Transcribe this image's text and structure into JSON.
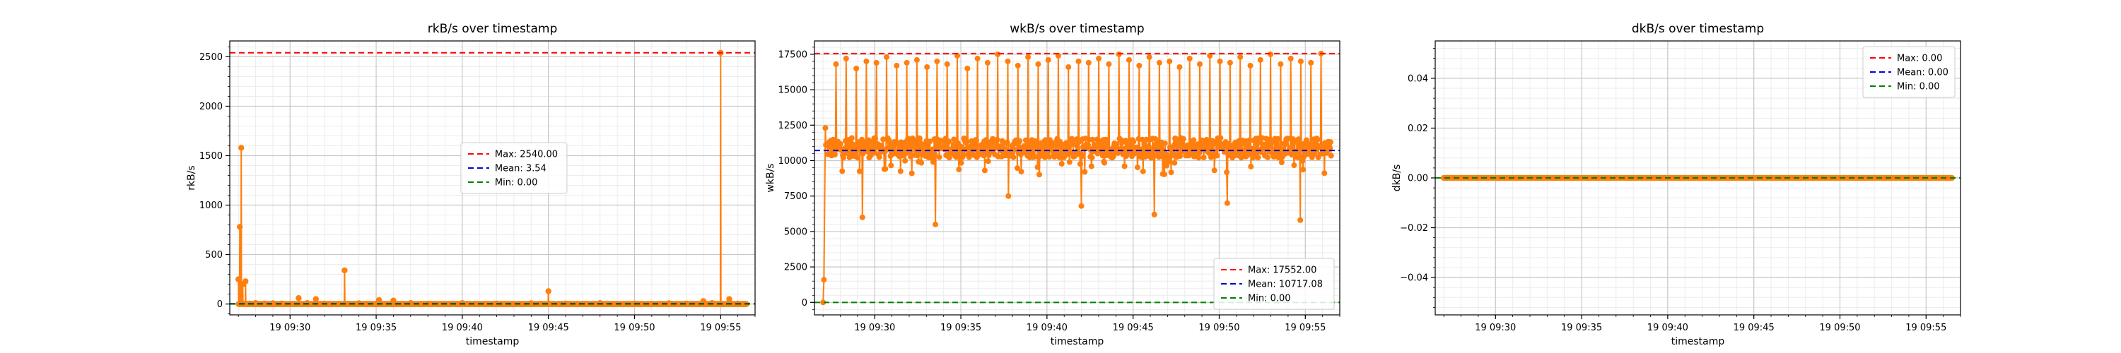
{
  "figure": {
    "charts": [
      {
        "title": "rkB/s over timestamp",
        "xlabel": "timestamp",
        "ylabel": "rkB/s"
      },
      {
        "title": "wkB/s over timestamp",
        "xlabel": "timestamp",
        "ylabel": "wkB/s"
      },
      {
        "title": "dkB/s over timestamp",
        "xlabel": "timestamp",
        "ylabel": "dkB/s"
      }
    ]
  },
  "chart_data": [
    {
      "type": "line",
      "title": "rkB/s over timestamp",
      "xlabel": "timestamp",
      "ylabel": "rkB/s",
      "x_range": [
        "19 09:26:30",
        "19 09:57:00"
      ],
      "ylim": [
        -110,
        2660
      ],
      "x_ticks": [
        "19 09:30",
        "19 09:35",
        "19 09:40",
        "19 09:45",
        "19 09:50",
        "19 09:55"
      ],
      "y_ticks": [
        0,
        500,
        1000,
        1500,
        2000,
        2500
      ],
      "grid": true,
      "minor_grid": true,
      "legend_position": "center-right",
      "series": [
        {
          "color": "#ff7f0e",
          "marker": "circle",
          "baseline": 0,
          "spikes": [
            [
              "19 09:27:00",
              250
            ],
            [
              "19 09:27:05",
              780
            ],
            [
              "19 09:27:10",
              1580
            ],
            [
              "19 09:27:15",
              200
            ],
            [
              "19 09:27:25",
              230
            ],
            [
              "19 09:27:40",
              5
            ],
            [
              "19 09:28:00",
              10
            ],
            [
              "19 09:28:30",
              5
            ],
            [
              "19 09:29:00",
              8
            ],
            [
              "19 09:29:30",
              5
            ],
            [
              "19 09:30:30",
              60
            ],
            [
              "19 09:31:00",
              10
            ],
            [
              "19 09:31:30",
              50
            ],
            [
              "19 09:32:00",
              5
            ],
            [
              "19 09:33:10",
              340
            ],
            [
              "19 09:34:00",
              8
            ],
            [
              "19 09:35:10",
              40
            ],
            [
              "19 09:36:00",
              35
            ],
            [
              "19 09:37:00",
              10
            ],
            [
              "19 09:38:00",
              5
            ],
            [
              "19 09:40:00",
              10
            ],
            [
              "19 09:42:00",
              5
            ],
            [
              "19 09:44:00",
              8
            ],
            [
              "19 09:45:00",
              130
            ],
            [
              "19 09:46:00",
              5
            ],
            [
              "19 09:48:00",
              10
            ],
            [
              "19 09:50:00",
              5
            ],
            [
              "19 09:52:00",
              8
            ],
            [
              "19 09:53:00",
              5
            ],
            [
              "19 09:54:00",
              30
            ],
            [
              "19 09:54:30",
              10
            ],
            [
              "19 09:55:00",
              2540
            ],
            [
              "19 09:55:30",
              50
            ],
            [
              "19 09:56:00",
              5
            ]
          ]
        }
      ],
      "reference_lines": [
        {
          "label": "Max: 2540.00",
          "value": 2540.0,
          "color": "#ff0000",
          "style": "dashed"
        },
        {
          "label": "Mean: 3.54",
          "value": 3.54,
          "color": "#0000cc",
          "style": "dashed"
        },
        {
          "label": "Min: 0.00",
          "value": 0.0,
          "color": "#008000",
          "style": "dashed"
        }
      ]
    },
    {
      "type": "line",
      "title": "wkB/s over timestamp",
      "xlabel": "timestamp",
      "ylabel": "wkB/s",
      "x_range": [
        "19 09:26:30",
        "19 09:57:00"
      ],
      "ylim": [
        -880,
        18440
      ],
      "x_ticks": [
        "19 09:30",
        "19 09:35",
        "19 09:40",
        "19 09:45",
        "19 09:50",
        "19 09:55"
      ],
      "y_ticks": [
        0,
        2500,
        5000,
        7500,
        10000,
        12500,
        15000,
        17500
      ],
      "grid": true,
      "minor_grid": true,
      "legend_position": "lower-right",
      "series": [
        {
          "color": "#ff7f0e",
          "marker": "circle",
          "start_points": [
            [
              "19 09:27:00",
              0
            ],
            [
              "19 09:27:03",
              1600
            ],
            [
              "19 09:27:08",
              12300
            ]
          ],
          "band_range": [
            9000,
            11800
          ],
          "spike_tops": [
            16800,
            17200,
            16500,
            17000,
            16900,
            17300,
            16700,
            16900,
            17100,
            16600,
            17000,
            16800,
            17400,
            16500,
            17200,
            16900,
            17500,
            17000,
            16700,
            17300,
            16800,
            17100,
            17400,
            16600,
            17000,
            16900,
            17200,
            16800,
            17500,
            17100,
            16700,
            17300,
            16900,
            17000,
            16600,
            17200,
            16800,
            17400,
            17000,
            16900,
            17300,
            16700,
            17100,
            17500,
            16800,
            17200,
            17000,
            16900,
            17552
          ],
          "dips": [
            6000,
            5500,
            7500,
            6800,
            6200,
            7000,
            5800
          ]
        }
      ],
      "reference_lines": [
        {
          "label": "Max: 17552.00",
          "value": 17552.0,
          "color": "#ff0000",
          "style": "dashed"
        },
        {
          "label": "Mean: 10717.08",
          "value": 10717.08,
          "color": "#0000cc",
          "style": "dashed"
        },
        {
          "label": "Min: 0.00",
          "value": 0.0,
          "color": "#008000",
          "style": "dashed"
        }
      ]
    },
    {
      "type": "line",
      "title": "dkB/s over timestamp",
      "xlabel": "timestamp",
      "ylabel": "dkB/s",
      "x_range": [
        "19 09:26:30",
        "19 09:57:00"
      ],
      "ylim": [
        -0.055,
        0.055
      ],
      "x_ticks": [
        "19 09:30",
        "19 09:35",
        "19 09:40",
        "19 09:45",
        "19 09:50",
        "19 09:55"
      ],
      "y_ticks": [
        -0.04,
        -0.02,
        0.0,
        0.02,
        0.04
      ],
      "y_tick_labels": [
        "−0.04",
        "−0.02",
        "0.00",
        "0.02",
        "0.04"
      ],
      "grid": true,
      "minor_grid": true,
      "legend_position": "top-right",
      "series": [
        {
          "color": "#ff7f0e",
          "marker": "circle",
          "constant_value": 0.0
        }
      ],
      "reference_lines": [
        {
          "label": "Max: 0.00",
          "value": 0.0,
          "color": "#ff0000",
          "style": "dashed"
        },
        {
          "label": "Mean: 0.00",
          "value": 0.0,
          "color": "#0000cc",
          "style": "dashed"
        },
        {
          "label": "Min: 0.00",
          "value": 0.0,
          "color": "#008000",
          "style": "dashed"
        }
      ]
    }
  ]
}
